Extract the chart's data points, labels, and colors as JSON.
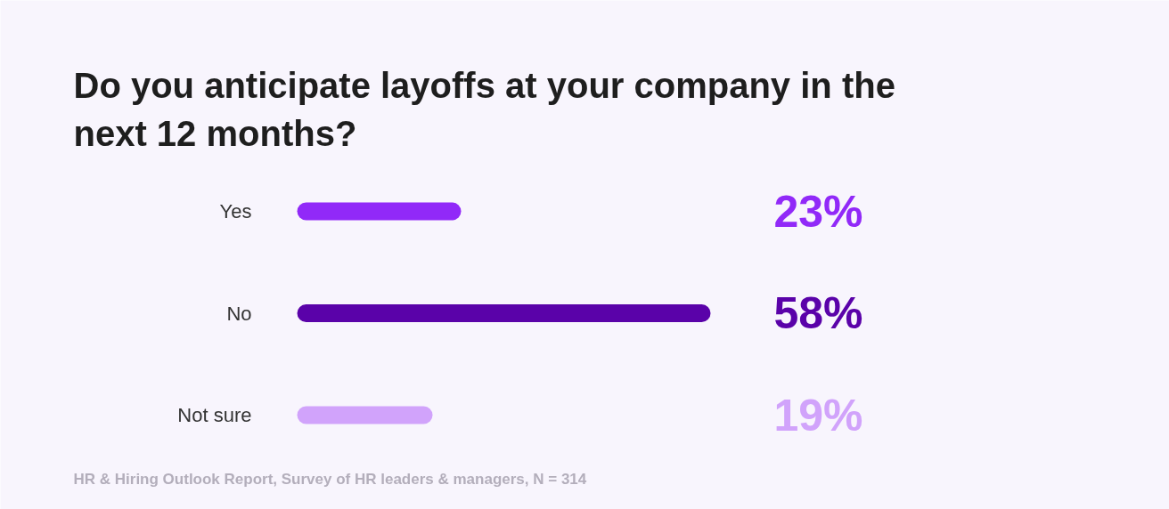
{
  "chart_data": {
    "type": "bar",
    "orientation": "horizontal",
    "title": "Do you anticipate layoffs at your company in the next 12 months?",
    "categories": [
      "Yes",
      "No",
      "Not sure"
    ],
    "values": [
      23,
      58,
      19
    ],
    "colors": [
      "#9129f8",
      "#5a02a9",
      "#d1a3fb"
    ],
    "value_labels": [
      "23%",
      "58%",
      "19%"
    ],
    "annotations": [
      "HR & Hiring Outlook Report, Survey of HR leaders & managers, N = 314"
    ]
  }
}
